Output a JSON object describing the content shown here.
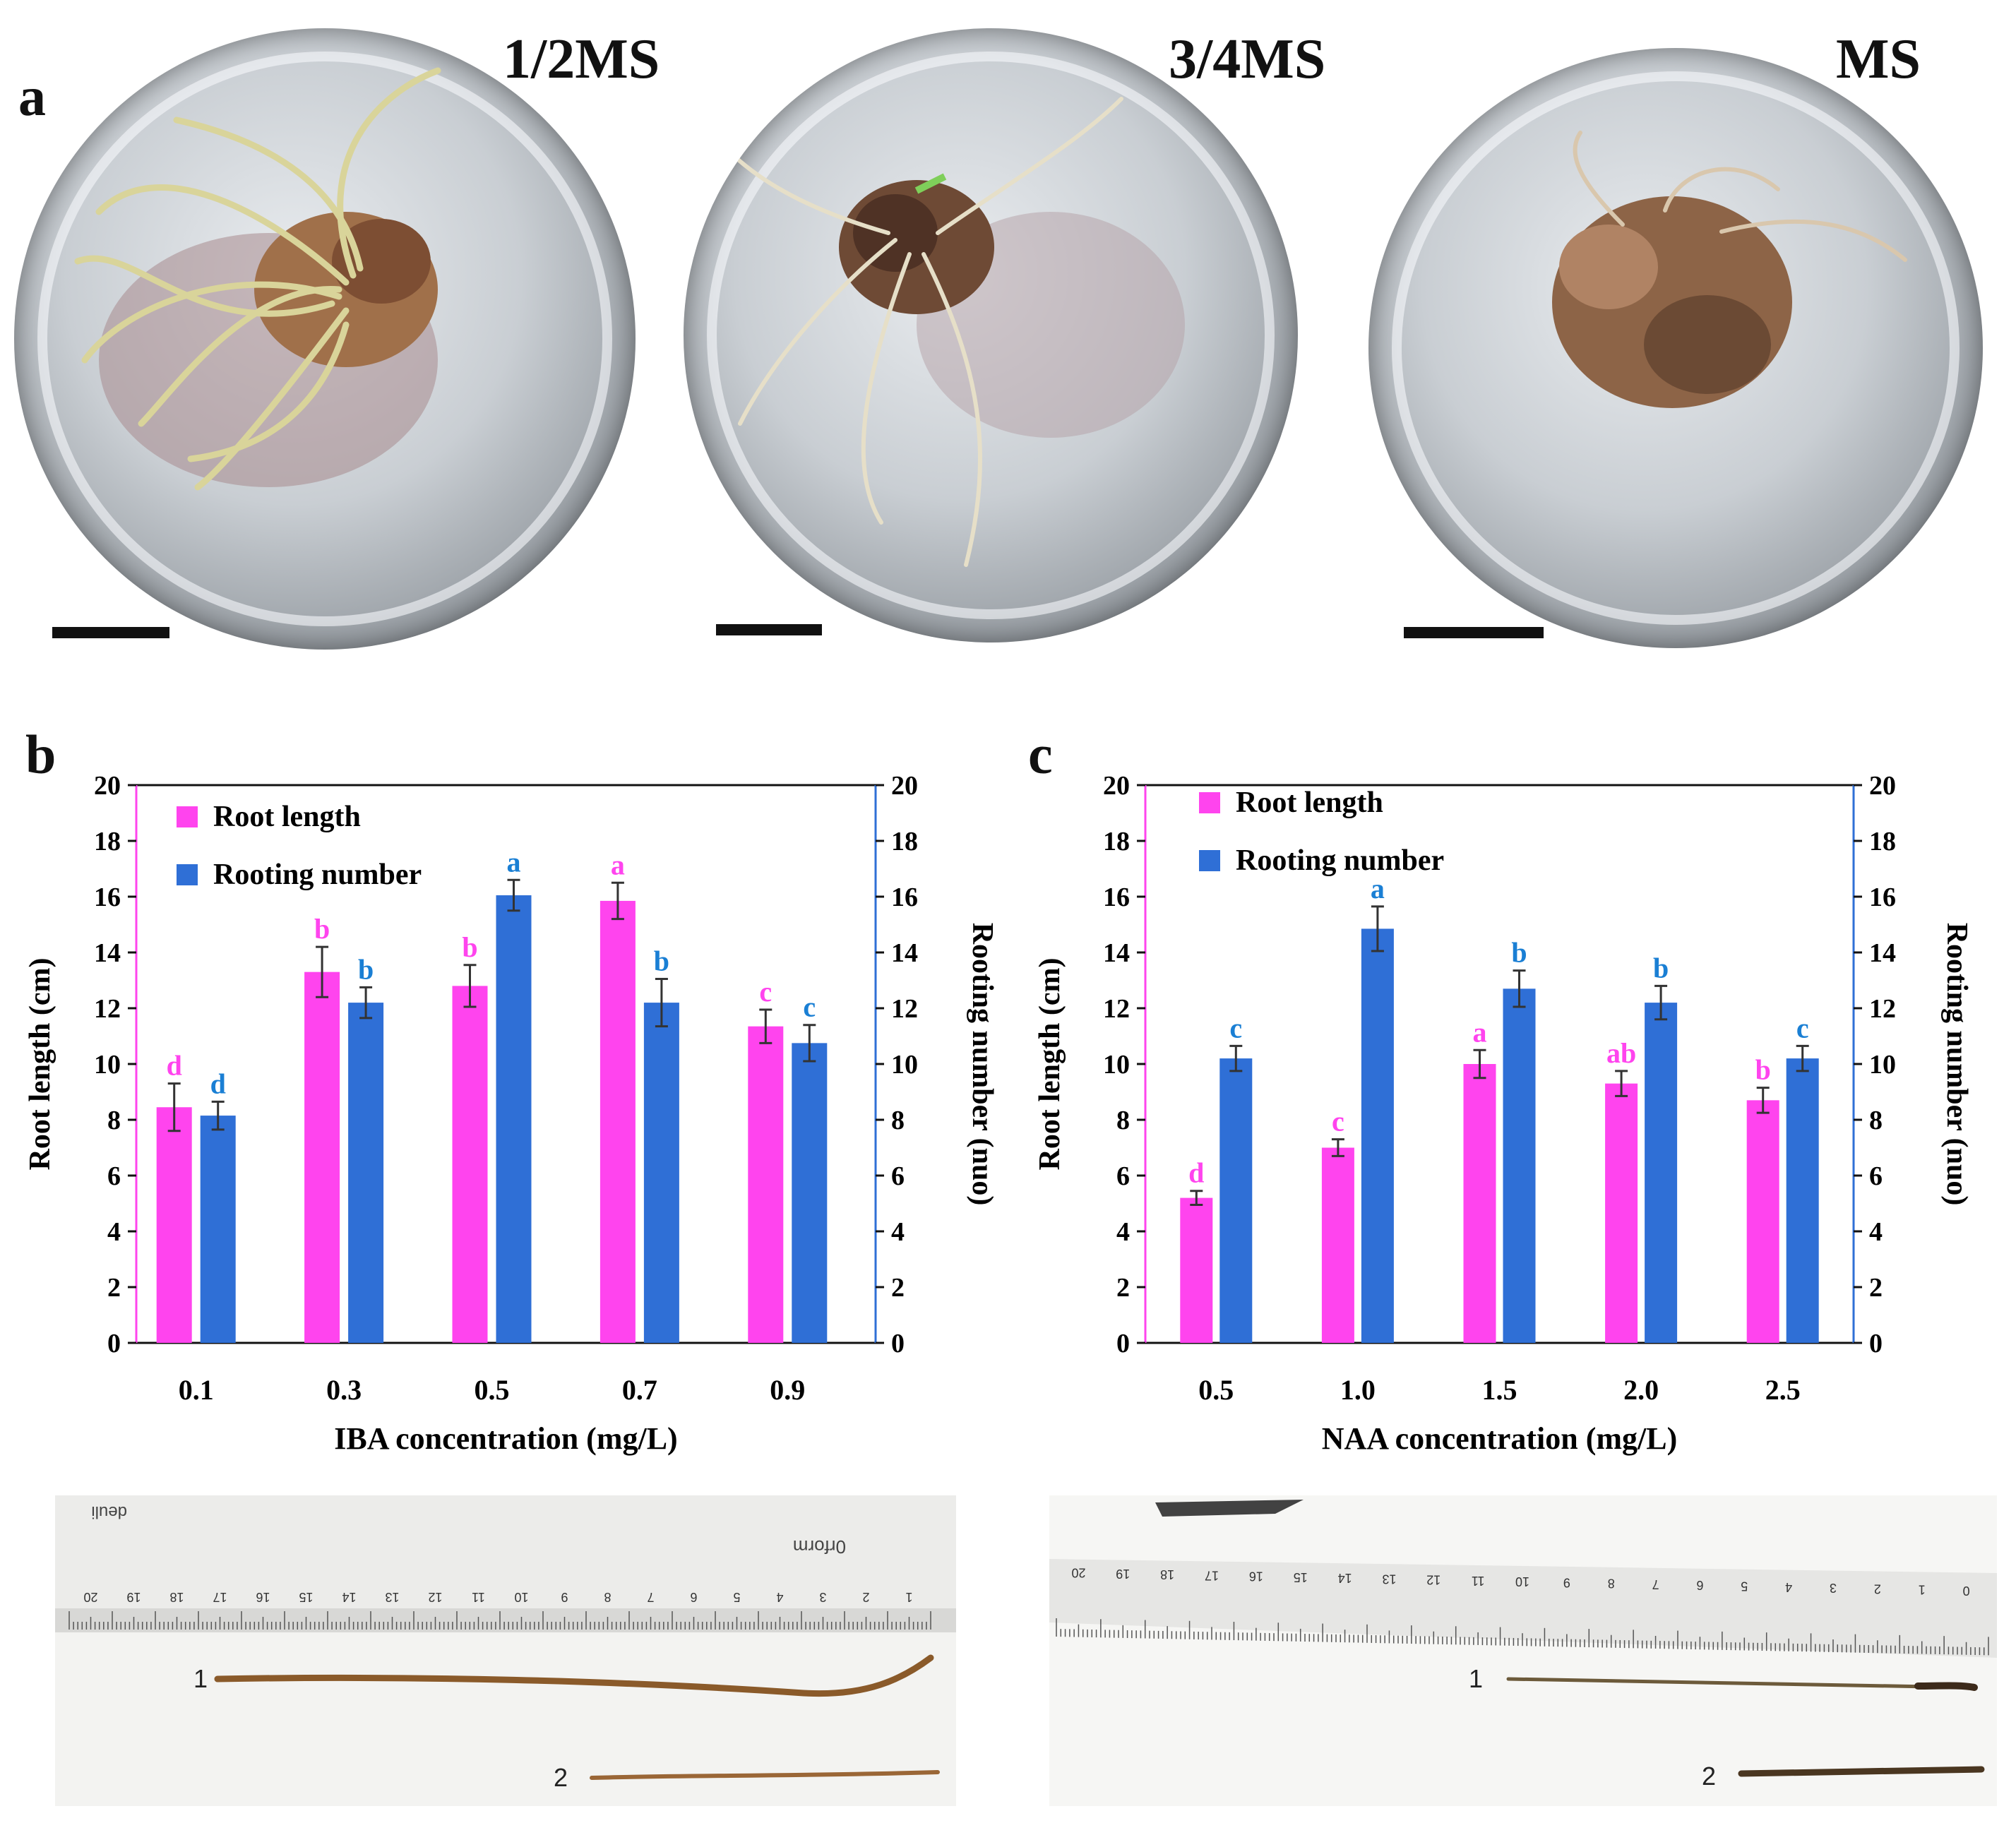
{
  "panels": {
    "a": {
      "letter": "a",
      "media": [
        "1/2MS",
        "3/4MS",
        "MS"
      ]
    },
    "b": {
      "letter": "b"
    },
    "c": {
      "letter": "c"
    }
  },
  "chart_data": [
    {
      "type": "bar",
      "panel": "b",
      "xlabel": "IBA concentration (mg/L)",
      "ylabel": "Root length (cm)",
      "y2label": "Rooting number (nuo)",
      "ylim": [
        0,
        20
      ],
      "y2lim": [
        0,
        20
      ],
      "yticks": [
        0,
        2,
        4,
        6,
        8,
        10,
        12,
        14,
        16,
        18,
        20
      ],
      "categories": [
        "0.1",
        "0.3",
        "0.5",
        "0.7",
        "0.9"
      ],
      "series": [
        {
          "name": "Root length",
          "color": "#ff44ee",
          "axis": "left",
          "values": [
            8.45,
            13.3,
            12.8,
            15.85,
            11.35
          ],
          "errors": [
            0.85,
            0.9,
            0.75,
            0.65,
            0.6
          ],
          "letters": [
            "d",
            "b",
            "b",
            "a",
            "c"
          ]
        },
        {
          "name": "Rooting number",
          "color": "#2f6fd6",
          "axis": "right",
          "values": [
            8.15,
            12.2,
            16.05,
            12.2,
            10.75
          ],
          "errors": [
            0.5,
            0.55,
            0.55,
            0.85,
            0.65
          ],
          "letters": [
            "d",
            "b",
            "a",
            "b",
            "c"
          ]
        }
      ]
    },
    {
      "type": "bar",
      "panel": "c",
      "xlabel": "NAA concentration (mg/L)",
      "ylabel": "Root length (cm)",
      "y2label": "Rooting number (nuo)",
      "ylim": [
        0,
        20
      ],
      "y2lim": [
        0,
        20
      ],
      "yticks": [
        0,
        2,
        4,
        6,
        8,
        10,
        12,
        14,
        16,
        18,
        20
      ],
      "categories": [
        "0.5",
        "1.0",
        "1.5",
        "2.0",
        "2.5"
      ],
      "series": [
        {
          "name": "Root length",
          "color": "#ff44ee",
          "axis": "left",
          "values": [
            5.2,
            7.0,
            10.0,
            9.3,
            8.7
          ],
          "errors": [
            0.25,
            0.3,
            0.5,
            0.45,
            0.45
          ],
          "letters": [
            "d",
            "c",
            "a",
            "ab",
            "b"
          ]
        },
        {
          "name": "Rooting number",
          "color": "#2f6fd6",
          "axis": "right",
          "values": [
            10.2,
            14.85,
            12.7,
            12.2,
            10.2
          ],
          "errors": [
            0.45,
            0.8,
            0.65,
            0.6,
            0.45
          ],
          "letters": [
            "c",
            "a",
            "b",
            "b",
            "c"
          ]
        }
      ]
    }
  ],
  "photos": {
    "left": {
      "brand": "deuli",
      "ruler_brand": "0rform",
      "ruler_numbers": [
        "20",
        "19",
        "18",
        "17",
        "16",
        "15",
        "14",
        "13",
        "12",
        "11",
        "10",
        "9",
        "8",
        "7",
        "6",
        "5",
        "4",
        "3",
        "2",
        "1"
      ],
      "root_labels": [
        "1",
        "2"
      ]
    },
    "right": {
      "ruler_numbers": [
        "20",
        "19",
        "18",
        "17",
        "16",
        "15",
        "14",
        "13",
        "12",
        "11",
        "10",
        "9",
        "8",
        "7",
        "6",
        "5",
        "4",
        "3",
        "2",
        "1",
        "0"
      ],
      "root_labels": [
        "1",
        "2"
      ]
    }
  },
  "colors": {
    "root_length": "#ff44ee",
    "rooting_number": "#2f6fd6",
    "letter_pink": "#ff44ee",
    "letter_blue": "#1a7fd4"
  }
}
